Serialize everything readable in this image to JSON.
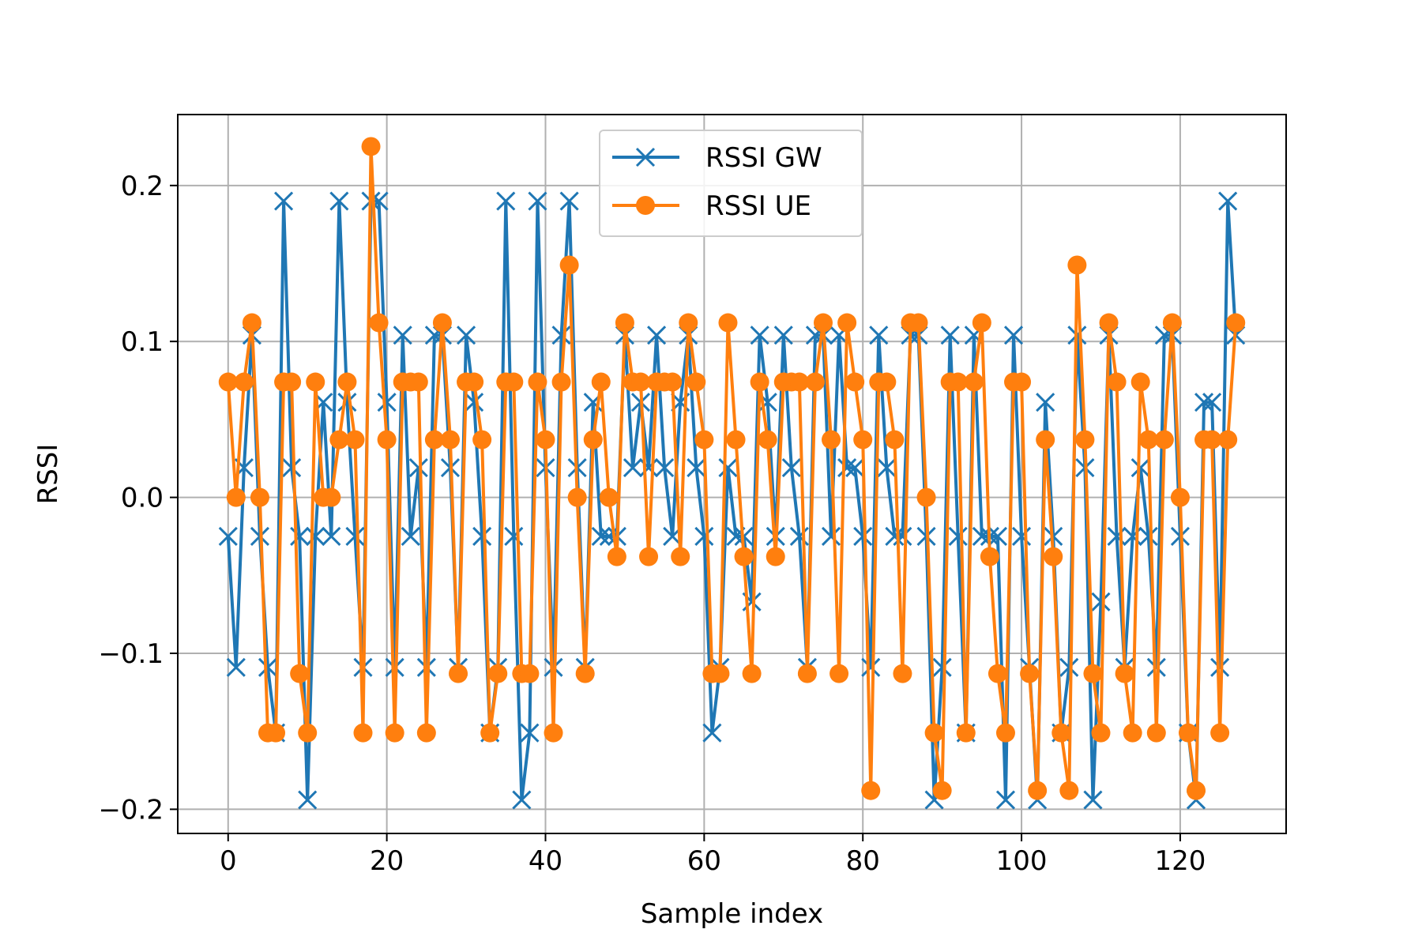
{
  "chart_data": {
    "type": "line",
    "title": "",
    "xlabel": "Sample index",
    "ylabel": "RSSI",
    "xlim": [
      -6.35,
      133.35
    ],
    "ylim": [
      -0.2155,
      0.2455
    ],
    "xticks": [
      0,
      20,
      40,
      60,
      80,
      100,
      120
    ],
    "xtick_labels": [
      "0",
      "20",
      "40",
      "60",
      "80",
      "100",
      "120"
    ],
    "yticks": [
      -0.2,
      -0.1,
      0.0,
      0.1,
      0.2
    ],
    "ytick_labels": [
      "−0.2",
      "−0.1",
      "0.0",
      "0.1",
      "0.2"
    ],
    "grid": true,
    "legend_position": "upper center",
    "series": [
      {
        "name": "RSSI GW",
        "color": "#1f77b4",
        "marker": "x",
        "values": [
          -0.025,
          -0.109,
          0.019,
          0.104,
          -0.025,
          -0.109,
          -0.151,
          0.19,
          0.019,
          -0.025,
          -0.194,
          -0.025,
          0.061,
          -0.025,
          0.19,
          0.061,
          -0.025,
          -0.109,
          0.19,
          0.19,
          0.061,
          -0.109,
          0.104,
          -0.025,
          0.019,
          -0.109,
          0.104,
          0.104,
          0.019,
          -0.109,
          0.104,
          0.061,
          -0.025,
          -0.151,
          -0.109,
          0.19,
          -0.025,
          -0.194,
          -0.151,
          0.19,
          0.019,
          -0.109,
          0.104,
          0.19,
          0.019,
          -0.109,
          0.061,
          -0.025,
          -0.025,
          -0.025,
          0.104,
          0.019,
          0.061,
          0.019,
          0.104,
          0.019,
          -0.025,
          0.061,
          0.104,
          0.019,
          -0.025,
          -0.151,
          -0.109,
          0.019,
          -0.025,
          -0.025,
          -0.067,
          0.104,
          0.061,
          -0.025,
          0.104,
          0.019,
          -0.025,
          -0.109,
          0.104,
          0.104,
          -0.025,
          0.104,
          0.019,
          0.019,
          -0.025,
          -0.109,
          0.104,
          0.019,
          -0.025,
          -0.025,
          0.104,
          0.104,
          -0.025,
          -0.194,
          -0.109,
          0.104,
          -0.025,
          -0.151,
          0.104,
          -0.025,
          -0.025,
          -0.025,
          -0.194,
          0.104,
          -0.025,
          -0.109,
          -0.194,
          0.061,
          -0.025,
          -0.151,
          -0.109,
          0.104,
          0.019,
          -0.194,
          -0.067,
          0.104,
          -0.025,
          -0.109,
          -0.025,
          0.019,
          -0.025,
          -0.109,
          0.104,
          0.104,
          -0.025,
          -0.151,
          -0.194,
          0.061,
          0.061,
          -0.109,
          0.19,
          0.104
        ]
      },
      {
        "name": "RSSI UE",
        "color": "#ff7f0e",
        "marker": "o",
        "values": [
          0.074,
          0.0,
          0.074,
          0.112,
          0.0,
          -0.151,
          -0.151,
          0.074,
          0.074,
          -0.113,
          -0.151,
          0.074,
          0.0,
          0.0,
          0.037,
          0.074,
          0.037,
          -0.151,
          0.225,
          0.112,
          0.037,
          -0.151,
          0.074,
          0.074,
          0.074,
          -0.151,
          0.037,
          0.112,
          0.037,
          -0.113,
          0.074,
          0.074,
          0.037,
          -0.151,
          -0.113,
          0.074,
          0.074,
          -0.113,
          -0.113,
          0.074,
          0.037,
          -0.151,
          0.074,
          0.149,
          0.0,
          -0.113,
          0.037,
          0.074,
          0.0,
          -0.038,
          0.112,
          0.074,
          0.074,
          -0.038,
          0.074,
          0.074,
          0.074,
          -0.038,
          0.112,
          0.074,
          0.037,
          -0.113,
          -0.113,
          0.112,
          0.037,
          -0.038,
          -0.113,
          0.074,
          0.037,
          -0.038,
          0.074,
          0.074,
          0.074,
          -0.113,
          0.074,
          0.112,
          0.037,
          -0.113,
          0.112,
          0.074,
          0.037,
          -0.188,
          0.074,
          0.074,
          0.037,
          -0.113,
          0.112,
          0.112,
          0.0,
          -0.151,
          -0.188,
          0.074,
          0.074,
          -0.151,
          0.074,
          0.112,
          -0.038,
          -0.113,
          -0.151,
          0.074,
          0.074,
          -0.113,
          -0.188,
          0.037,
          -0.038,
          -0.151,
          -0.188,
          0.149,
          0.037,
          -0.113,
          -0.151,
          0.112,
          0.074,
          -0.113,
          -0.151,
          0.074,
          0.037,
          -0.151,
          0.037,
          0.112,
          0.0,
          -0.151,
          -0.188,
          0.037,
          0.037,
          -0.151,
          0.037,
          0.112
        ]
      }
    ]
  }
}
